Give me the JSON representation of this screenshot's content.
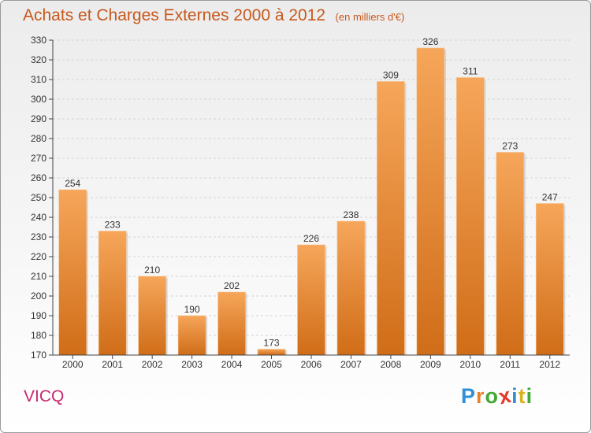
{
  "header": {
    "title": "Achats et Charges Externes 2000 à 2012",
    "subtitle": "(en milliers d'€)"
  },
  "place_name": "VICQ",
  "logo": {
    "letters": [
      "P",
      "r",
      "o",
      "x",
      "i",
      "t",
      "i"
    ],
    "colors": [
      "#2f8fd8",
      "#e8822a",
      "#43a835",
      "#e23a2a",
      "#2f8fd8",
      "#d9b21e",
      "#43a835"
    ]
  },
  "colors": {
    "bar_top": "#f6a65a",
    "bar_bottom": "#d06d18",
    "grid": "#d4d4d4",
    "axis": "#444444",
    "text": "#333333"
  },
  "chart_data": {
    "type": "bar",
    "categories": [
      "2000",
      "2001",
      "2002",
      "2003",
      "2004",
      "2005",
      "2006",
      "2007",
      "2008",
      "2009",
      "2010",
      "2011",
      "2012"
    ],
    "values": [
      254,
      233,
      210,
      190,
      202,
      173,
      226,
      238,
      309,
      326,
      311,
      273,
      247
    ],
    "ylim": [
      170,
      330
    ],
    "yticks": [
      170,
      180,
      190,
      200,
      210,
      220,
      230,
      240,
      250,
      260,
      270,
      280,
      290,
      300,
      310,
      320,
      330
    ],
    "grid": true,
    "data_labels": true
  }
}
